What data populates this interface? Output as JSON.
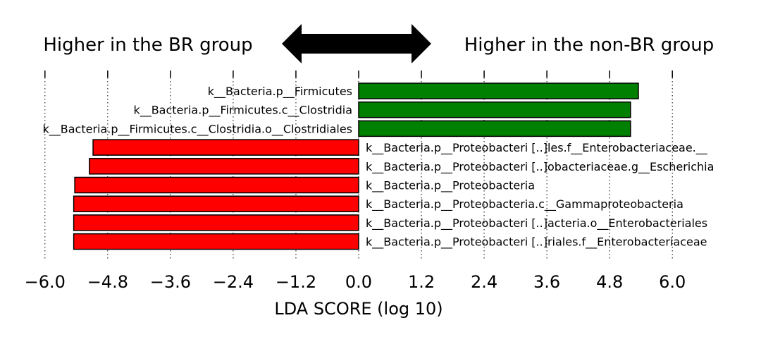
{
  "header": {
    "left_label": "Higher in the BR group",
    "right_label": "Higher in the non-BR group"
  },
  "chart_data": {
    "type": "bar",
    "orientation": "horizontal",
    "title": "",
    "xlabel": "LDA SCORE (log 10)",
    "ylabel": "",
    "xlim": [
      -6.0,
      6.0
    ],
    "xticks": [
      -6.0,
      -4.8,
      -3.6,
      -2.4,
      -1.2,
      0.0,
      1.2,
      2.4,
      3.6,
      4.8,
      6.0
    ],
    "xtick_labels": [
      "−6.0",
      "−4.8",
      "−3.6",
      "−2.4",
      "−1.2",
      "0.0",
      "1.2",
      "2.4",
      "3.6",
      "4.8",
      "6.0"
    ],
    "grid": "vertical-dotted",
    "colors": {
      "positive": "#008000",
      "negative": "#ff0000"
    },
    "bars": [
      {
        "label": "k__Bacteria.p__Firmicutes",
        "value": 5.35
      },
      {
        "label": "k__Bacteria.p__Firmicutes.c__Clostridia",
        "value": 5.2
      },
      {
        "label": "k__Bacteria.p__Firmicutes.c__Clostridia.o__Clostridiales",
        "value": 5.2
      },
      {
        "label": "k__Bacteria.p__Proteobacteri [..]les.f__Enterobacteriaceae.__",
        "value": -5.08
      },
      {
        "label": "k__Bacteria.p__Proteobacteri [..]obacteriaceae.g__Escherichia",
        "value": -5.15
      },
      {
        "label": "k__Bacteria.p__Proteobacteria",
        "value": -5.43
      },
      {
        "label": "k__Bacteria.p__Proteobacteria.c__Gammaproteobacteria",
        "value": -5.45
      },
      {
        "label": "k__Bacteria.p__Proteobacteri [..]acteria.o__Enterobacteriales",
        "value": -5.45
      },
      {
        "label": "k__Bacteria.p__Proteobacteri [..]riales.f__Enterobacteriaceae",
        "value": -5.45
      }
    ]
  }
}
